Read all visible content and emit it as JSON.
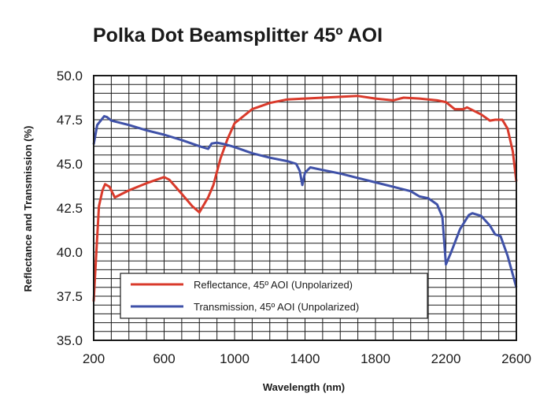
{
  "chart_data": {
    "type": "line",
    "title": "Polka Dot Beamsplitter 45º AOI",
    "xlabel": "Wavelength (nm)",
    "ylabel": "Reflectance and Transmission (%)",
    "xlim": [
      200,
      2600
    ],
    "ylim": [
      35.0,
      50.0
    ],
    "x_ticks": [
      200,
      600,
      1000,
      1400,
      1800,
      2200,
      2600
    ],
    "x_tick_labels": [
      "200",
      "600",
      "1000",
      "1400",
      "1800",
      "2200",
      "2600"
    ],
    "y_ticks": [
      35.0,
      37.5,
      40.0,
      42.5,
      45.0,
      47.5,
      50.0
    ],
    "y_tick_labels": [
      "35.0",
      "37.5",
      "40.0",
      "42.5",
      "45.0",
      "47.5",
      "50.0"
    ],
    "grid": true,
    "legend_position": "bottom-left",
    "series": [
      {
        "name": "Reflectance, 45º AOI (Unpolarized)",
        "color": "#d93a2b",
        "points": [
          [
            200,
            37.2
          ],
          [
            215,
            40.0
          ],
          [
            230,
            42.6
          ],
          [
            250,
            43.5
          ],
          [
            265,
            43.85
          ],
          [
            290,
            43.7
          ],
          [
            320,
            43.1
          ],
          [
            400,
            43.5
          ],
          [
            500,
            43.9
          ],
          [
            600,
            44.25
          ],
          [
            630,
            44.1
          ],
          [
            700,
            43.3
          ],
          [
            760,
            42.6
          ],
          [
            800,
            42.25
          ],
          [
            850,
            43.1
          ],
          [
            880,
            43.8
          ],
          [
            920,
            45.3
          ],
          [
            960,
            46.4
          ],
          [
            1000,
            47.3
          ],
          [
            1100,
            48.1
          ],
          [
            1200,
            48.45
          ],
          [
            1300,
            48.65
          ],
          [
            1400,
            48.7
          ],
          [
            1500,
            48.75
          ],
          [
            1600,
            48.8
          ],
          [
            1700,
            48.85
          ],
          [
            1800,
            48.7
          ],
          [
            1900,
            48.6
          ],
          [
            1960,
            48.75
          ],
          [
            2050,
            48.7
          ],
          [
            2150,
            48.6
          ],
          [
            2200,
            48.5
          ],
          [
            2250,
            48.1
          ],
          [
            2300,
            48.1
          ],
          [
            2320,
            48.2
          ],
          [
            2400,
            47.8
          ],
          [
            2450,
            47.45
          ],
          [
            2480,
            47.5
          ],
          [
            2520,
            47.5
          ],
          [
            2550,
            47.0
          ],
          [
            2580,
            45.7
          ],
          [
            2600,
            44.0
          ]
        ]
      },
      {
        "name": "Transmission, 45º AOI (Unpolarized)",
        "color": "#3f51a8",
        "points": [
          [
            200,
            46.1
          ],
          [
            220,
            47.2
          ],
          [
            260,
            47.7
          ],
          [
            275,
            47.65
          ],
          [
            300,
            47.45
          ],
          [
            400,
            47.2
          ],
          [
            500,
            46.9
          ],
          [
            600,
            46.65
          ],
          [
            700,
            46.35
          ],
          [
            800,
            46.0
          ],
          [
            850,
            45.85
          ],
          [
            870,
            46.15
          ],
          [
            900,
            46.2
          ],
          [
            950,
            46.1
          ],
          [
            1000,
            45.95
          ],
          [
            1100,
            45.6
          ],
          [
            1200,
            45.35
          ],
          [
            1300,
            45.15
          ],
          [
            1350,
            45.0
          ],
          [
            1370,
            44.6
          ],
          [
            1385,
            43.8
          ],
          [
            1400,
            44.5
          ],
          [
            1430,
            44.8
          ],
          [
            1500,
            44.65
          ],
          [
            1600,
            44.45
          ],
          [
            1700,
            44.2
          ],
          [
            1800,
            43.95
          ],
          [
            1900,
            43.7
          ],
          [
            2000,
            43.45
          ],
          [
            2050,
            43.15
          ],
          [
            2100,
            43.05
          ],
          [
            2150,
            42.7
          ],
          [
            2180,
            42.0
          ],
          [
            2200,
            39.3
          ],
          [
            2230,
            40.0
          ],
          [
            2280,
            41.3
          ],
          [
            2330,
            42.1
          ],
          [
            2350,
            42.2
          ],
          [
            2400,
            42.05
          ],
          [
            2450,
            41.5
          ],
          [
            2480,
            41.0
          ],
          [
            2510,
            40.9
          ],
          [
            2550,
            39.8
          ],
          [
            2600,
            38.0
          ]
        ]
      }
    ]
  }
}
